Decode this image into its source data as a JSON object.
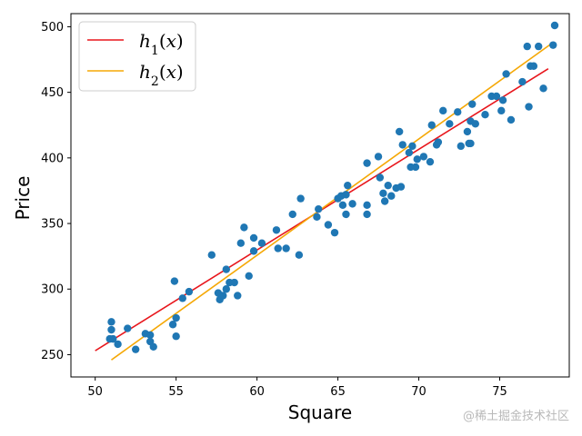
{
  "chart_data": {
    "type": "scatter",
    "xlabel": "Square",
    "ylabel": "Price",
    "xlim": [
      48.5,
      79.3
    ],
    "ylim": [
      233,
      510
    ],
    "xticks": [
      50,
      55,
      60,
      65,
      70,
      75
    ],
    "yticks": [
      250,
      300,
      350,
      400,
      450,
      500
    ],
    "grid": false,
    "legend_position": "top-left",
    "colors": {
      "points": "#1f77b4",
      "h1": "#e8161c",
      "h2": "#f5a806"
    },
    "points": [
      [
        51.0,
        275
      ],
      [
        51.0,
        269
      ],
      [
        50.9,
        262
      ],
      [
        51.1,
        262
      ],
      [
        51.4,
        258
      ],
      [
        52.0,
        270
      ],
      [
        52.5,
        254
      ],
      [
        53.1,
        266
      ],
      [
        53.4,
        265
      ],
      [
        53.4,
        260
      ],
      [
        53.6,
        256
      ],
      [
        54.8,
        273
      ],
      [
        55.0,
        278
      ],
      [
        55.0,
        264
      ],
      [
        54.9,
        306
      ],
      [
        55.4,
        293
      ],
      [
        55.8,
        298
      ],
      [
        57.2,
        326
      ],
      [
        57.6,
        297
      ],
      [
        57.7,
        292
      ],
      [
        57.9,
        295
      ],
      [
        58.1,
        315
      ],
      [
        58.1,
        300
      ],
      [
        58.3,
        305
      ],
      [
        58.6,
        305
      ],
      [
        58.8,
        295
      ],
      [
        59.0,
        335
      ],
      [
        59.2,
        347
      ],
      [
        59.5,
        310
      ],
      [
        59.8,
        339
      ],
      [
        59.8,
        329
      ],
      [
        60.3,
        335
      ],
      [
        61.2,
        345
      ],
      [
        61.3,
        331
      ],
      [
        61.8,
        331
      ],
      [
        62.2,
        357
      ],
      [
        62.6,
        326
      ],
      [
        62.7,
        369
      ],
      [
        63.7,
        355
      ],
      [
        63.8,
        361
      ],
      [
        64.4,
        349
      ],
      [
        64.8,
        343
      ],
      [
        65.0,
        369
      ],
      [
        65.2,
        371
      ],
      [
        65.3,
        364
      ],
      [
        65.5,
        372
      ],
      [
        65.5,
        357
      ],
      [
        65.6,
        379
      ],
      [
        65.9,
        365
      ],
      [
        66.8,
        357
      ],
      [
        66.8,
        364
      ],
      [
        66.8,
        396
      ],
      [
        67.5,
        401
      ],
      [
        67.6,
        385
      ],
      [
        67.8,
        373
      ],
      [
        67.9,
        367
      ],
      [
        68.1,
        379
      ],
      [
        68.3,
        371
      ],
      [
        68.6,
        377
      ],
      [
        68.9,
        378
      ],
      [
        68.8,
        420
      ],
      [
        69.0,
        410
      ],
      [
        69.4,
        404
      ],
      [
        69.5,
        393
      ],
      [
        69.6,
        409
      ],
      [
        69.8,
        393
      ],
      [
        69.9,
        399
      ],
      [
        70.3,
        401
      ],
      [
        70.7,
        397
      ],
      [
        70.8,
        425
      ],
      [
        71.1,
        410
      ],
      [
        71.2,
        412
      ],
      [
        71.5,
        436
      ],
      [
        71.9,
        426
      ],
      [
        72.4,
        435
      ],
      [
        72.6,
        409
      ],
      [
        73.0,
        420
      ],
      [
        73.1,
        411
      ],
      [
        73.2,
        411
      ],
      [
        73.2,
        428
      ],
      [
        73.3,
        441
      ],
      [
        73.5,
        426
      ],
      [
        74.1,
        433
      ],
      [
        74.5,
        447
      ],
      [
        74.8,
        447
      ],
      [
        75.1,
        436
      ],
      [
        75.2,
        444
      ],
      [
        75.4,
        464
      ],
      [
        75.7,
        429
      ],
      [
        76.4,
        458
      ],
      [
        76.7,
        485
      ],
      [
        76.8,
        439
      ],
      [
        76.9,
        470
      ],
      [
        77.1,
        470
      ],
      [
        77.4,
        485
      ],
      [
        77.7,
        453
      ],
      [
        78.3,
        486
      ],
      [
        78.4,
        501
      ]
    ],
    "series": [
      {
        "name": "h_1(x)",
        "x": [
          50.0,
          78.0
        ],
        "y": [
          253,
          468
        ]
      },
      {
        "name": "h_2(x)",
        "x": [
          51.0,
          78.3
        ],
        "y": [
          246,
          488
        ]
      }
    ]
  },
  "watermark": "@稀土掘金技术社区"
}
